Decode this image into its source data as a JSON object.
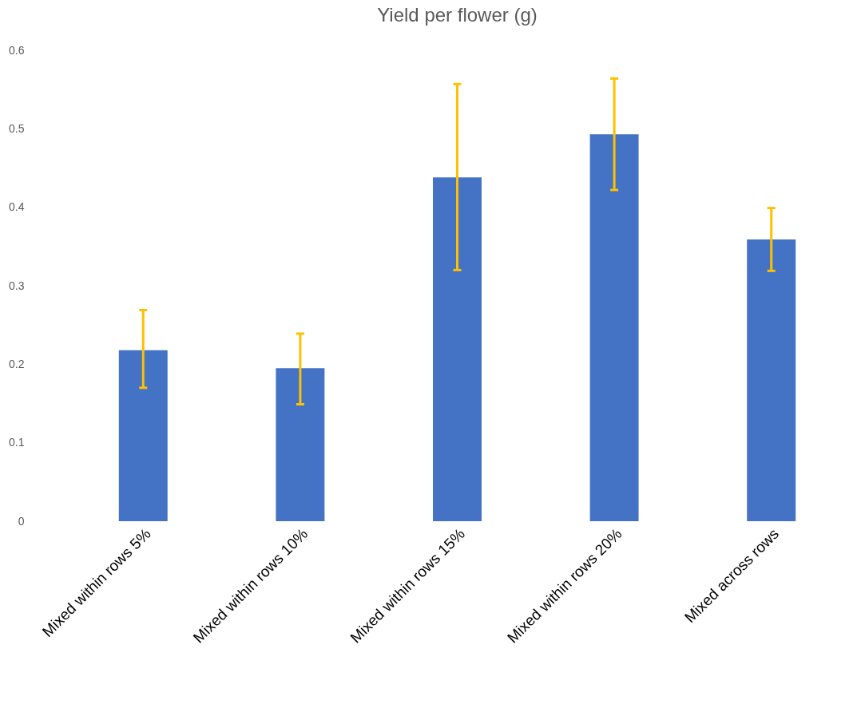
{
  "chart_data": {
    "type": "bar",
    "title": "Yield per flower (g)",
    "categories": [
      "Mixed within rows 5%",
      "Mixed within rows 10%",
      "Mixed within rows 15%",
      "Mixed within rows 20%",
      "Mixed across rows"
    ],
    "values": [
      0.218,
      0.195,
      0.438,
      0.493,
      0.359
    ],
    "errors": [
      [
        0.17,
        0.269
      ],
      [
        0.149,
        0.239
      ],
      [
        0.32,
        0.557
      ],
      [
        0.422,
        0.564
      ],
      [
        0.319,
        0.399
      ]
    ],
    "color": "#4472c4",
    "ylim": [
      0,
      0.6
    ],
    "yticks": [
      0,
      0.1,
      0.2,
      0.3,
      0.4,
      0.5,
      0.6
    ],
    "grid": false
  }
}
